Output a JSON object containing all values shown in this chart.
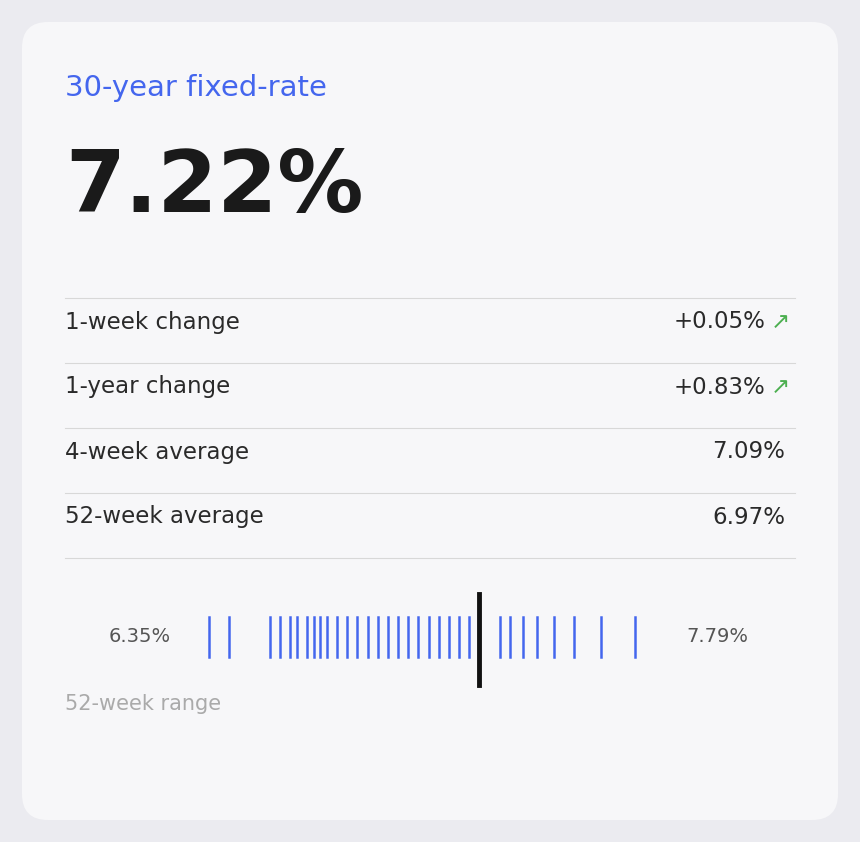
{
  "title": "30-year fixed-rate",
  "main_value": "7.22%",
  "rows": [
    {
      "label": "1-week change",
      "value": "+0.05%",
      "arrow": true,
      "arrow_color": "#4CAF50"
    },
    {
      "label": "1-year change",
      "value": "+0.83%",
      "arrow": true,
      "arrow_color": "#4CAF50"
    },
    {
      "label": "4-week average",
      "value": "7.09%",
      "arrow": false,
      "arrow_color": null
    },
    {
      "label": "52-week average",
      "value": "6.97%",
      "arrow": false,
      "arrow_color": null
    }
  ],
  "range_min": "6.35%",
  "range_max": "7.79%",
  "range_label": "52-week range",
  "range_min_val": 6.35,
  "range_max_val": 7.79,
  "current_val": 7.22,
  "tick_values": [
    6.42,
    6.48,
    6.6,
    6.63,
    6.66,
    6.68,
    6.71,
    6.73,
    6.75,
    6.77,
    6.8,
    6.83,
    6.86,
    6.89,
    6.92,
    6.95,
    6.98,
    7.01,
    7.04,
    7.07,
    7.1,
    7.13,
    7.16,
    7.19,
    7.28,
    7.31,
    7.35,
    7.39,
    7.44,
    7.5,
    7.58,
    7.68
  ],
  "title_color": "#4466EE",
  "main_value_color": "#1a1a1a",
  "label_color": "#2a2a2a",
  "value_color": "#2a2a2a",
  "range_label_color": "#aaaaaa",
  "range_minmax_color": "#555555",
  "tick_color": "#4466EE",
  "current_tick_color": "#111111",
  "bg_color": "#ebebf0",
  "card_color": "#f7f7f9",
  "divider_color": "#d8d8d8",
  "title_fontsize": 21,
  "main_value_fontsize": 62,
  "row_label_fontsize": 16.5,
  "row_value_fontsize": 16.5,
  "range_fontsize": 14,
  "range_label_fontsize": 15
}
